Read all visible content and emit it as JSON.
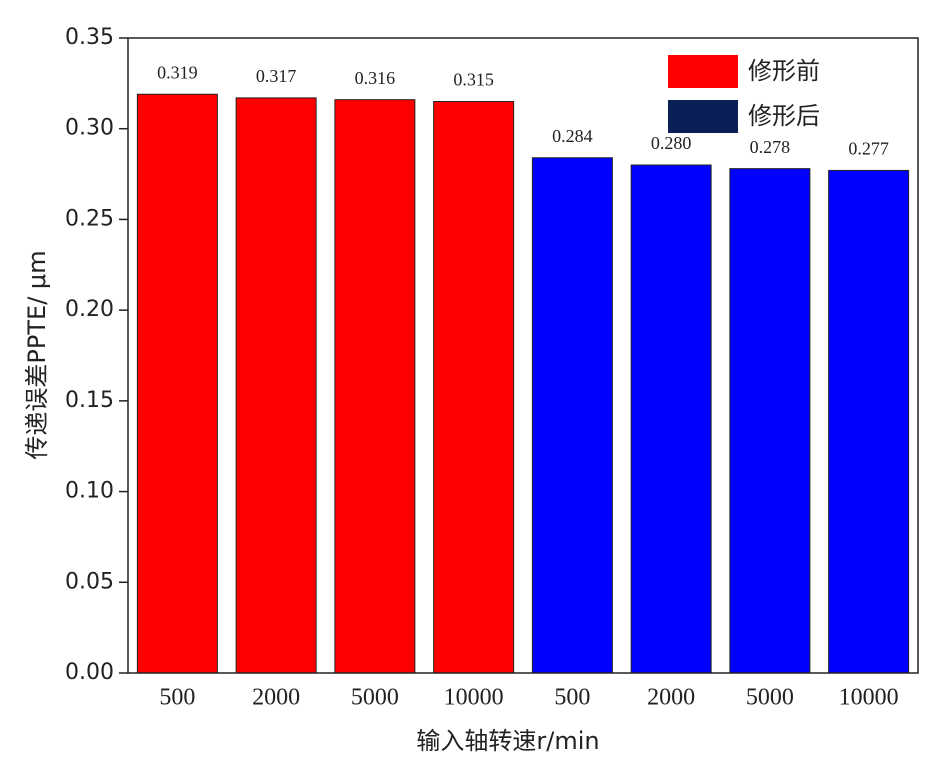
{
  "chart_data": {
    "type": "bar",
    "categories": [
      "500",
      "2000",
      "5000",
      "10000",
      "500",
      "2000",
      "5000",
      "10000"
    ],
    "series": [
      {
        "name": "修形前",
        "color": "#ff0000",
        "legend_color": "#ff0000",
        "values": [
          0.319,
          0.317,
          0.316,
          0.315,
          null,
          null,
          null,
          null
        ],
        "value_labels": [
          "0.319",
          "0.317",
          "0.316",
          "0.315",
          null,
          null,
          null,
          null
        ]
      },
      {
        "name": "修形后",
        "color": "#0000ff",
        "legend_color": "#0a1f55",
        "values": [
          null,
          null,
          null,
          null,
          0.284,
          0.28,
          0.278,
          0.277
        ],
        "value_labels": [
          null,
          null,
          null,
          null,
          "0.284",
          "0.280",
          "0.278",
          "0.277"
        ]
      }
    ],
    "xlabel": "输入轴转速r/min",
    "ylabel": "传递误差PPTE/ μm",
    "ylim": [
      0,
      0.35
    ],
    "yticks": [
      {
        "value": 0,
        "label": "0.00"
      },
      {
        "value": 0.05,
        "label": "0.05"
      },
      {
        "value": 0.1,
        "label": "0.10"
      },
      {
        "value": 0.15,
        "label": "0.15"
      },
      {
        "value": 0.2,
        "label": "0.20"
      },
      {
        "value": 0.25,
        "label": "0.25"
      },
      {
        "value": 0.3,
        "label": "0.30"
      },
      {
        "value": 0.35,
        "label": "0.35"
      }
    ],
    "legend": "upper right"
  }
}
